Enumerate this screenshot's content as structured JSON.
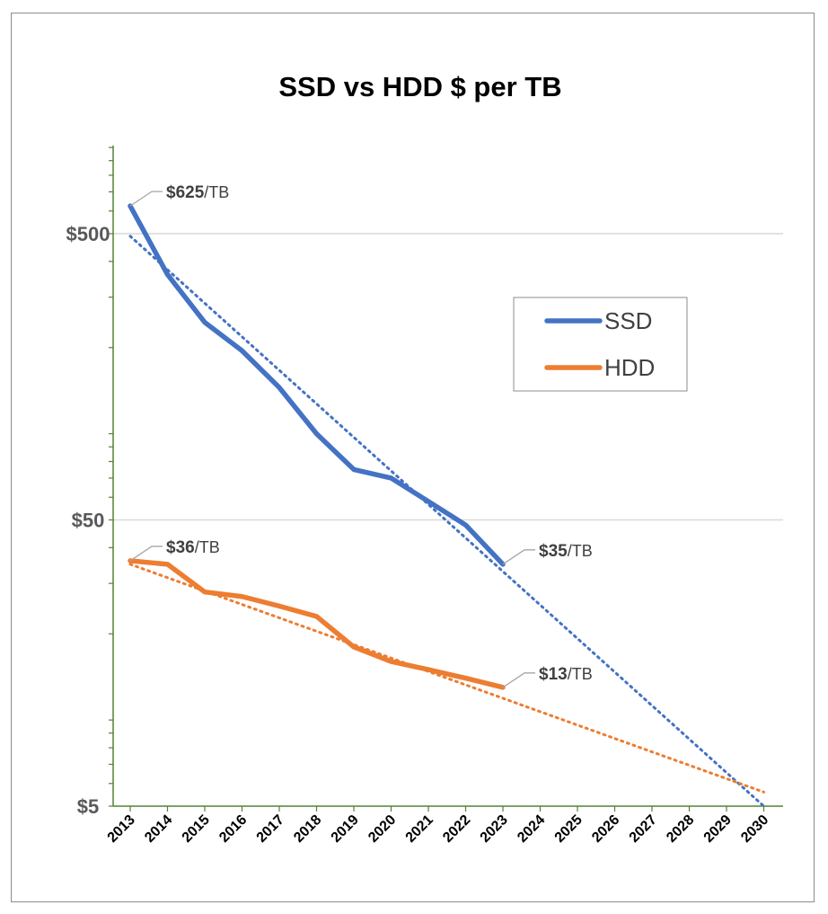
{
  "chart_data": {
    "type": "line",
    "title": "SSD vs HDD $ per TB",
    "y_scale": "log",
    "ylim": [
      5,
      1000
    ],
    "y_ticks": [
      {
        "value": 500,
        "label": "$500"
      },
      {
        "value": 50,
        "label": "$50"
      },
      {
        "value": 5,
        "label": "$5"
      }
    ],
    "x_categories": [
      "2013",
      "2014",
      "2015",
      "2016",
      "2017",
      "2018",
      "2019",
      "2020",
      "2021",
      "2022",
      "2023",
      "2024",
      "2025",
      "2026",
      "2027",
      "2028",
      "2029",
      "2030"
    ],
    "grid": true,
    "legend_position": "right",
    "series": [
      {
        "name": "SSD",
        "color": "#4472c4",
        "x": [
          2013,
          2014,
          2015,
          2016,
          2017,
          2018,
          2019,
          2020,
          2021,
          2022,
          2023
        ],
        "values": [
          625,
          360,
          245,
          195,
          145,
          100,
          75,
          70,
          58,
          48,
          35
        ],
        "trendline": {
          "style": "dotted",
          "x_start": 2013,
          "x_end": 2030,
          "y_start": 490,
          "y_end": 5
        }
      },
      {
        "name": "HDD",
        "color": "#ed7d31",
        "x": [
          2013,
          2014,
          2015,
          2016,
          2017,
          2018,
          2019,
          2020,
          2021,
          2022,
          2023
        ],
        "values": [
          36,
          35,
          28,
          27,
          25,
          23,
          18,
          16,
          15,
          14,
          13
        ],
        "trendline": {
          "style": "dotted",
          "x_start": 2013,
          "x_end": 2030,
          "y_start": 35,
          "y_end": 5.6
        }
      }
    ],
    "annotations": [
      {
        "value": "$625",
        "unit": "/TB",
        "series": "SSD",
        "x": 2013
      },
      {
        "value": "$35",
        "unit": "/TB",
        "series": "SSD",
        "x": 2023
      },
      {
        "value": "$36",
        "unit": "/TB",
        "series": "HDD",
        "x": 2013
      },
      {
        "value": "$13",
        "unit": "/TB",
        "series": "HDD",
        "x": 2023
      }
    ]
  }
}
